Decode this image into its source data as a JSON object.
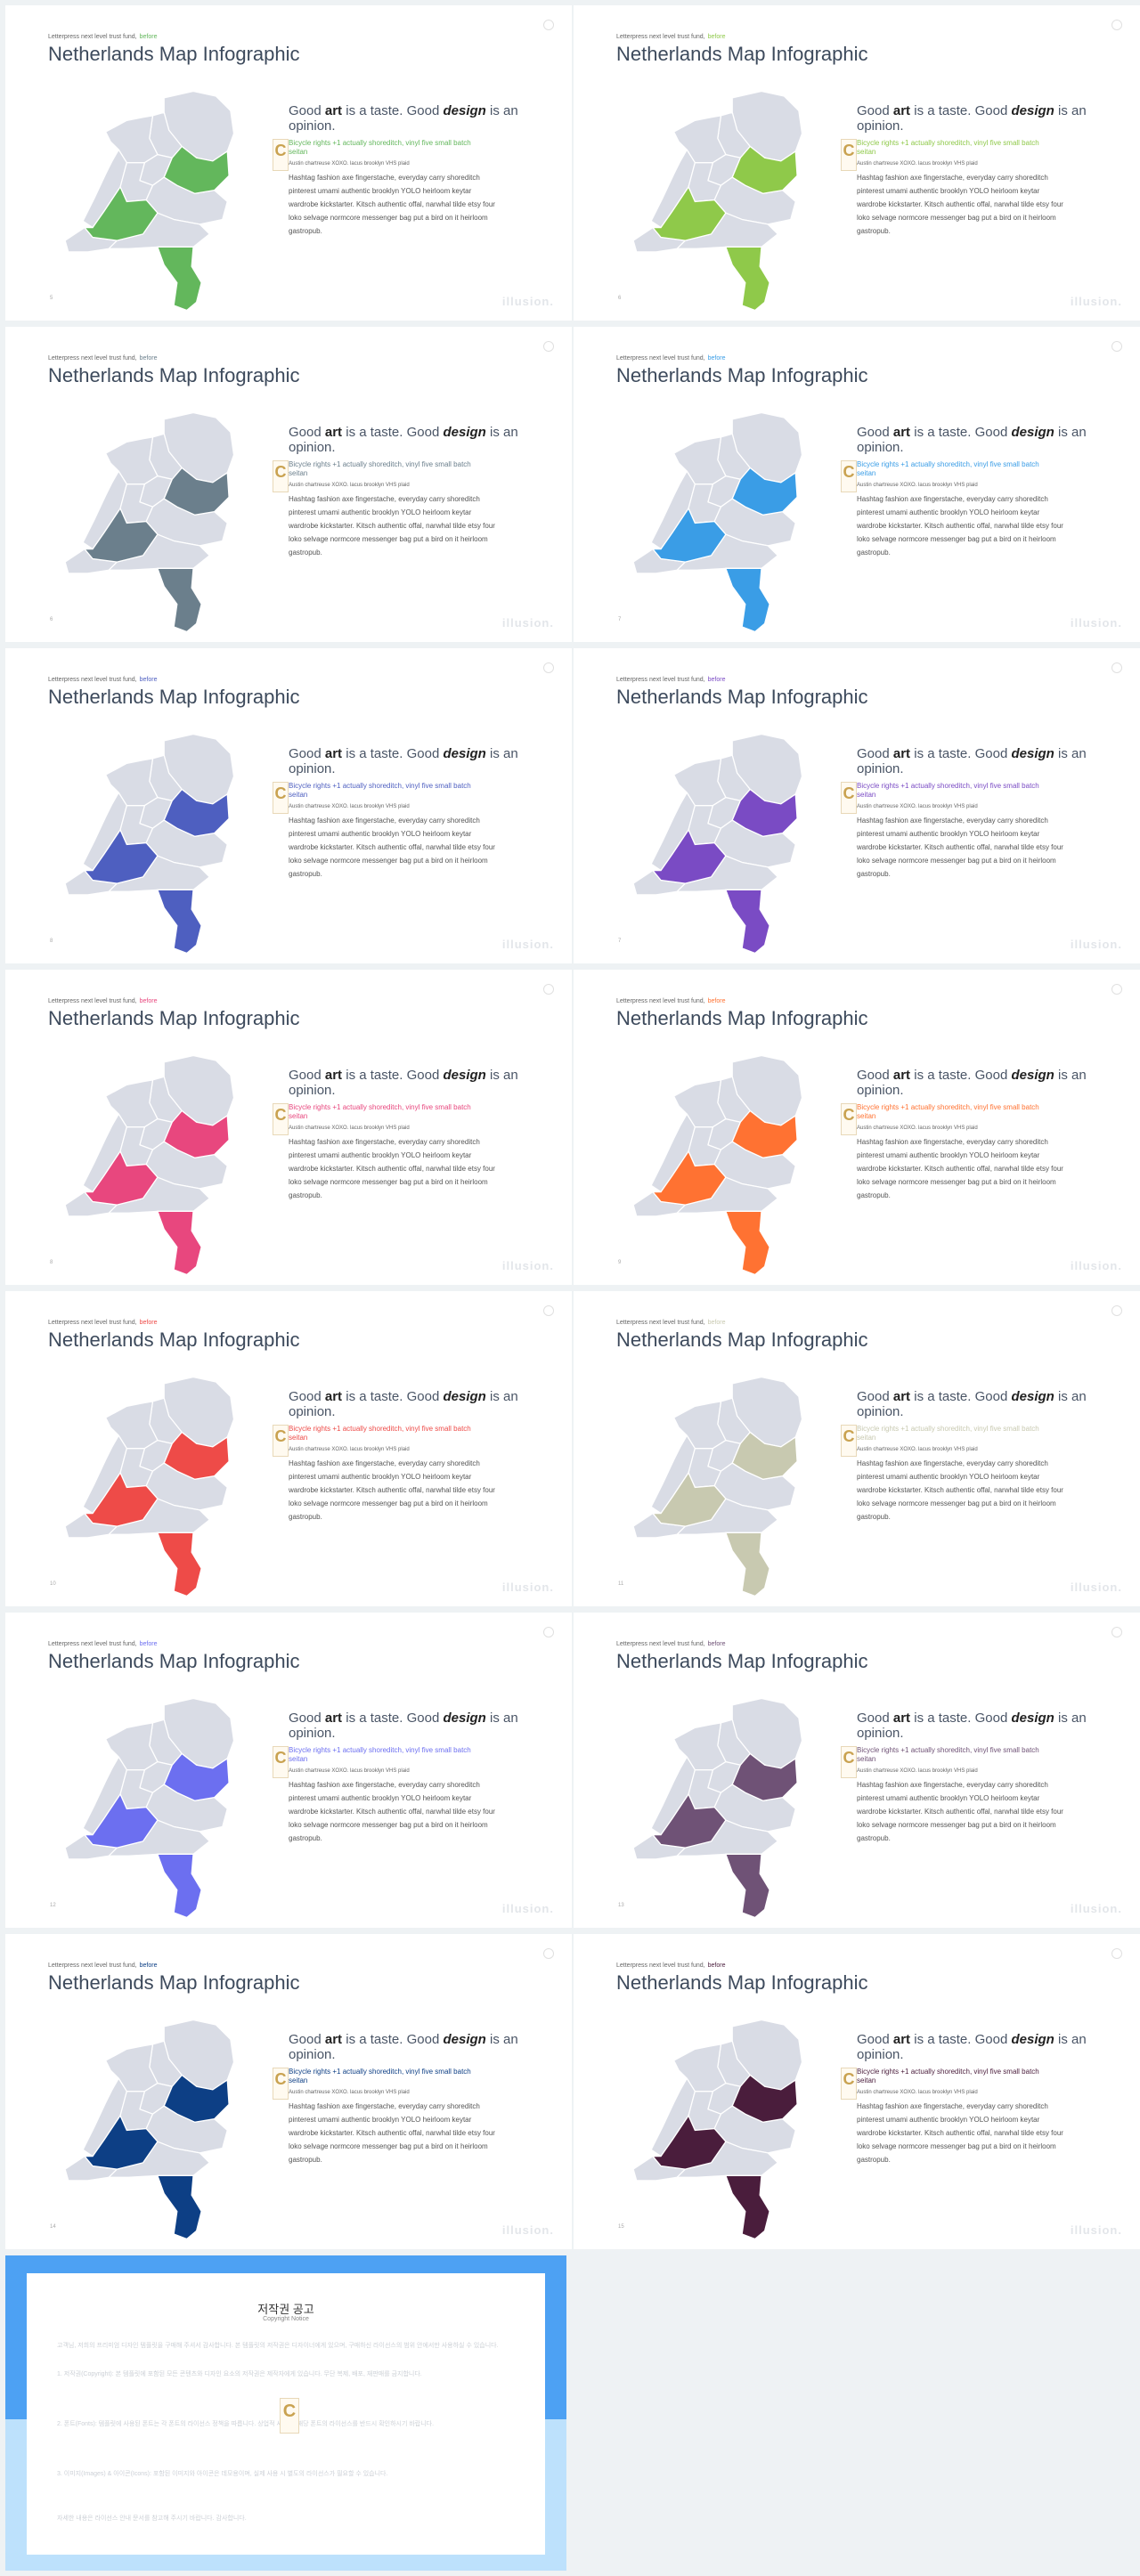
{
  "slide_template": {
    "tagline": "Letterpress next level trust fund,",
    "tagline_accent": "before",
    "title": "Netherlands Map Infographic",
    "heading_a": "Good ",
    "heading_art": "art",
    "heading_b": " is a taste. Good ",
    "heading_design": "design",
    "heading_c": " is an opinion.",
    "sub": "Bicycle rights +1 actually shoreditch, vinyl five small batch",
    "sub2": "seitan",
    "small": "Austin chartreuse XOXO. lacus brooklyn VHS plaid",
    "body": "Hashtag fashion axe fingerstache, everyday carry shoreditch pinterest umami authentic brooklyn YOLO heirloom keytar wardrobe kickstarter. Kitsch authentic offal, narwhal tilde etsy four loko selvage normcore messenger bag put a bird on it heirloom gastropub.",
    "brand": "illusion.",
    "watermark_letter": "C"
  },
  "slides": [
    {
      "page": "5",
      "color": "#63b75c"
    },
    {
      "page": "6",
      "color": "#8fc94a"
    },
    {
      "page": "6",
      "color": "#6b7f8c"
    },
    {
      "page": "7",
      "color": "#3a9de6"
    },
    {
      "page": "8",
      "color": "#4e5fc0"
    },
    {
      "page": "7",
      "color": "#7a4bc4"
    },
    {
      "page": "8",
      "color": "#e8477e"
    },
    {
      "page": "9",
      "color": "#ff7232"
    },
    {
      "page": "10",
      "color": "#ee4b48"
    },
    {
      "page": "11",
      "color": "#c8c9b0"
    },
    {
      "page": "12",
      "color": "#6c6ff0"
    },
    {
      "page": "13",
      "color": "#6f5276"
    },
    {
      "page": "14",
      "color": "#0d3f85"
    },
    {
      "page": "15",
      "color": "#4a1d3c"
    }
  ],
  "copyright": {
    "title": "저작권 공고",
    "subtitle": "Copyright Notice",
    "p1": "고객님, 저희의 프리미엄 디자인 템플릿을 구매해 주셔서 감사합니다. 본 템플릿의 저작권은 디자이너에게 있으며, 구매하신 라이선스의 범위 안에서만 사용하실 수 있습니다.",
    "p2": "1. 저작권(Copyright): 본 템플릿에 포함된 모든 콘텐츠와 디자인 요소의 저작권은 제작자에게 있습니다. 무단 복제, 배포, 재판매를 금지합니다.",
    "p3": "2. 폰트(Fonts): 템플릿에 사용된 폰트는 각 폰트의 라이선스 정책을 따릅니다. 상업적 사용 시 해당 폰트의 라이선스를 반드시 확인하시기 바랍니다.",
    "p4": "3. 이미지(Images) & 아이콘(Icons): 포함된 이미지와 아이콘은 데모용이며, 실제 사용 시 별도의 라이선스가 필요할 수 있습니다.",
    "p5": "자세한 내용은 라이선스 안내 문서를 참고해 주시기 바랍니다. 감사합니다."
  }
}
